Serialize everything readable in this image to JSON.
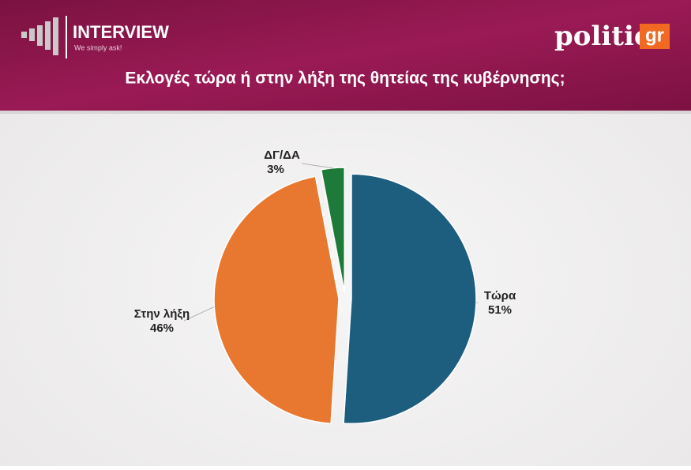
{
  "header": {
    "brand": "INTERVIEW",
    "tagline": "We simply ask!",
    "logo": "politic",
    "logo_suffix": "gr"
  },
  "chart_data": {
    "type": "pie",
    "title": "Εκλογές τώρα ή στην λήξη της θητείας της κυβέρνησης;",
    "categories": [
      "Τώρα",
      "Στην λήξη",
      "ΔΓ/ΔΑ"
    ],
    "values": [
      51,
      46,
      3
    ],
    "value_labels": [
      "51%",
      "46%",
      "3%"
    ],
    "colors": [
      "#1d5d7e",
      "#e8772f",
      "#1e7a38"
    ]
  }
}
